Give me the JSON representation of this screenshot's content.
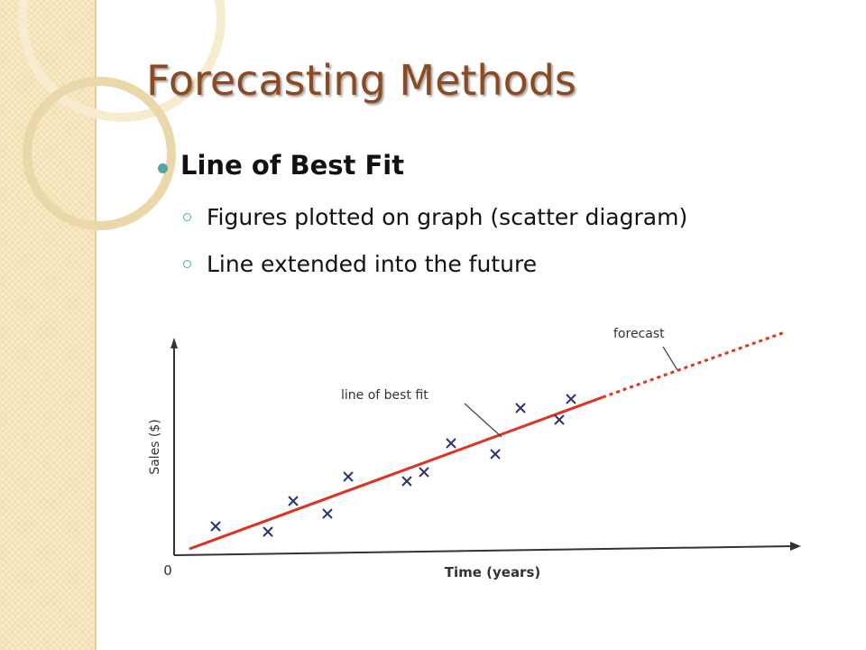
{
  "header": {
    "title": "Forecasting Methods"
  },
  "bullets": [
    {
      "text": "Line of Best Fit",
      "sub": [
        "Figures plotted on graph (scatter diagram)",
        "Line extended into the future"
      ]
    }
  ],
  "diagram": {
    "y_label": "Sales ($)",
    "x_label": "Time (years)",
    "origin": "0",
    "annotations": [
      "line of best fit",
      "forecast"
    ]
  }
}
